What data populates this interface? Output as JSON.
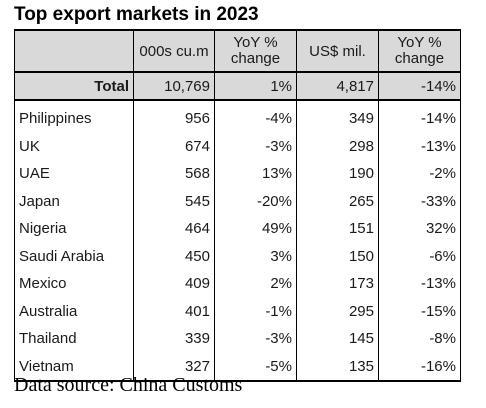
{
  "title": "Top export markets in 2023",
  "headers": [
    "",
    "000s cu.m",
    "YoY %\nchange",
    "US$ mil.",
    "YoY %\nchange"
  ],
  "total": {
    "label": "Total",
    "volume": "10,769",
    "volume_yoy": "1%",
    "value": "4,817",
    "value_yoy": "-14%"
  },
  "rows": [
    {
      "label": "Philippines",
      "volume": "956",
      "volume_yoy": "-4%",
      "value": "349",
      "value_yoy": "-14%"
    },
    {
      "label": "UK",
      "volume": "674",
      "volume_yoy": "-3%",
      "value": "298",
      "value_yoy": "-13%"
    },
    {
      "label": "UAE",
      "volume": "568",
      "volume_yoy": "13%",
      "value": "190",
      "value_yoy": "-2%"
    },
    {
      "label": "Japan",
      "volume": "545",
      "volume_yoy": "-20%",
      "value": "265",
      "value_yoy": "-33%"
    },
    {
      "label": "Nigeria",
      "volume": "464",
      "volume_yoy": "49%",
      "value": "151",
      "value_yoy": "32%"
    },
    {
      "label": "Saudi Arabia",
      "volume": "450",
      "volume_yoy": "3%",
      "value": "150",
      "value_yoy": "-6%"
    },
    {
      "label": "Mexico",
      "volume": "409",
      "volume_yoy": "2%",
      "value": "173",
      "value_yoy": "-13%"
    },
    {
      "label": "Australia",
      "volume": "401",
      "volume_yoy": "-1%",
      "value": "295",
      "value_yoy": "-15%"
    },
    {
      "label": "Thailand",
      "volume": "339",
      "volume_yoy": "-3%",
      "value": "145",
      "value_yoy": "-8%"
    },
    {
      "label": "Vietnam",
      "volume": "327",
      "volume_yoy": "-5%",
      "value": "135",
      "value_yoy": "-16%"
    }
  ],
  "source": "Data source: China Customs"
}
